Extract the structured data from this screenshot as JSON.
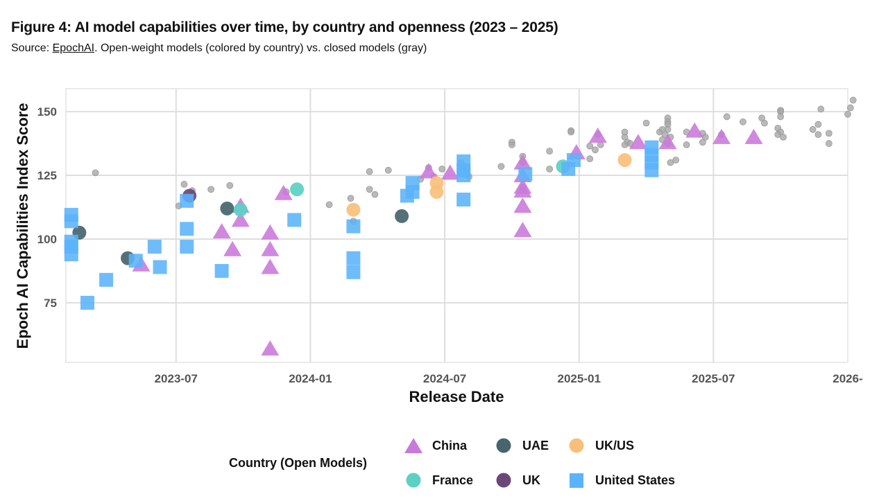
{
  "header": {
    "title": "Figure 4: AI model capabilities over time, by country and openness (2023 – 2025)",
    "subtitle_prefix": "Source: ",
    "subtitle_link": "EpochAI",
    "subtitle_suffix": ". Open-weight models (colored by country) vs. closed models (gray)"
  },
  "legend": {
    "title": "Country (Open Models)",
    "items": [
      {
        "label": "China",
        "shape": "triangle",
        "color": "#C978DB"
      },
      {
        "label": "UAE",
        "shape": "circle",
        "color": "#47656B"
      },
      {
        "label": "UK/US",
        "shape": "circle",
        "color": "#F7C07A"
      },
      {
        "label": "France",
        "shape": "circle",
        "color": "#5BD0C3"
      },
      {
        "label": "UK",
        "shape": "circle",
        "color": "#6B4877"
      },
      {
        "label": "United States",
        "shape": "square",
        "color": "#5BB3FA"
      }
    ]
  },
  "chart_data": {
    "type": "scatter",
    "title": "Figure 4: AI model capabilities over time, by country and openness (2023 – 2025)",
    "xlabel": "Release Date",
    "ylabel": "Epoch AI Capabilities Index Score",
    "x_unit": "fractional year",
    "xlim": [
      2023.09,
      2026.0
    ],
    "ylim": [
      51.6,
      159
    ],
    "x_ticks": [
      {
        "value": 2023.5,
        "label": "2023-07"
      },
      {
        "value": 2024.0,
        "label": "2024-01"
      },
      {
        "value": 2024.5,
        "label": "2024-07"
      },
      {
        "value": 2025.0,
        "label": "2025-01"
      },
      {
        "value": 2025.5,
        "label": "2025-07"
      },
      {
        "value": 2026.0,
        "label": "2026-"
      }
    ],
    "y_ticks": [
      75,
      100,
      125,
      150
    ],
    "grid": true,
    "legend_position": "bottom",
    "closed_color": "#A8A8A8",
    "series": [
      {
        "name": "Closed",
        "shape": "circle-small",
        "color": "#A8A8A8",
        "points": [
          [
            2023.2,
            126
          ],
          [
            2023.53,
            121.5
          ],
          [
            2023.51,
            113
          ],
          [
            2023.56,
            119
          ],
          [
            2023.7,
            121
          ],
          [
            2023.63,
            119.5
          ],
          [
            2023.91,
            118.5
          ],
          [
            2024.07,
            113.5
          ],
          [
            2024.15,
            116
          ],
          [
            2024.22,
            126.5
          ],
          [
            2024.22,
            119.5
          ],
          [
            2024.24,
            117.5
          ],
          [
            2024.16,
            107
          ],
          [
            2024.29,
            127
          ],
          [
            2024.44,
            128
          ],
          [
            2024.46,
            124.5
          ],
          [
            2024.41,
            123.5
          ],
          [
            2024.49,
            127.5
          ],
          [
            2024.56,
            130
          ],
          [
            2024.59,
            124.5
          ],
          [
            2024.57,
            128.5
          ],
          [
            2024.71,
            128.5
          ],
          [
            2024.75,
            138
          ],
          [
            2024.75,
            137
          ],
          [
            2024.79,
            132.5
          ],
          [
            2024.79,
            130
          ],
          [
            2024.79,
            120.5
          ],
          [
            2024.89,
            134.5
          ],
          [
            2024.89,
            127.5
          ],
          [
            2024.97,
            142.5
          ],
          [
            2024.97,
            142
          ],
          [
            2025.04,
            136.5
          ],
          [
            2025.04,
            131.5
          ],
          [
            2025.07,
            141
          ],
          [
            2025.08,
            137
          ],
          [
            2025.06,
            135
          ],
          [
            2025.17,
            142
          ],
          [
            2025.17,
            140
          ],
          [
            2025.18,
            138
          ],
          [
            2025.19,
            137.5
          ],
          [
            2025.17,
            137
          ],
          [
            2025.25,
            145.5
          ],
          [
            2025.3,
            142
          ],
          [
            2025.31,
            139
          ],
          [
            2025.33,
            147.5
          ],
          [
            2025.33,
            146
          ],
          [
            2025.33,
            145
          ],
          [
            2025.33,
            143
          ],
          [
            2025.32,
            141
          ],
          [
            2025.34,
            140
          ],
          [
            2025.31,
            143
          ],
          [
            2025.33,
            137.5
          ],
          [
            2025.36,
            131
          ],
          [
            2025.34,
            130
          ],
          [
            2025.4,
            142
          ],
          [
            2025.4,
            137
          ],
          [
            2025.46,
            141.5
          ],
          [
            2025.47,
            140
          ],
          [
            2025.46,
            138
          ],
          [
            2025.53,
            141
          ],
          [
            2025.55,
            148
          ],
          [
            2025.61,
            146
          ],
          [
            2025.68,
            147.5
          ],
          [
            2025.69,
            145.5
          ],
          [
            2025.75,
            150.5
          ],
          [
            2025.75,
            150
          ],
          [
            2025.75,
            148
          ],
          [
            2025.74,
            143.5
          ],
          [
            2025.75,
            142
          ],
          [
            2025.74,
            141
          ],
          [
            2025.76,
            140
          ],
          [
            2025.9,
            151
          ],
          [
            2025.87,
            143
          ],
          [
            2025.89,
            145
          ],
          [
            2025.89,
            141
          ],
          [
            2025.93,
            141.5
          ],
          [
            2025.93,
            137.5
          ],
          [
            2026.02,
            154.5
          ],
          [
            2026.01,
            151.5
          ],
          [
            2026.0,
            149
          ]
        ]
      },
      {
        "name": "China",
        "shape": "triangle",
        "color": "#C978DB",
        "points": [
          [
            2023.37,
            90
          ],
          [
            2023.67,
            103
          ],
          [
            2023.71,
            96
          ],
          [
            2023.74,
            113
          ],
          [
            2023.74,
            107.5
          ],
          [
            2023.85,
            102.5
          ],
          [
            2023.85,
            96
          ],
          [
            2023.85,
            89
          ],
          [
            2023.9,
            118
          ],
          [
            2023.85,
            57
          ],
          [
            2024.44,
            126.5
          ],
          [
            2024.52,
            126
          ],
          [
            2024.79,
            130
          ],
          [
            2024.79,
            125
          ],
          [
            2024.79,
            120.5
          ],
          [
            2024.79,
            119
          ],
          [
            2024.79,
            113
          ],
          [
            2024.79,
            103.5
          ],
          [
            2024.99,
            134
          ],
          [
            2025.07,
            140.5
          ],
          [
            2025.22,
            138
          ],
          [
            2025.33,
            138
          ],
          [
            2025.43,
            142.5
          ],
          [
            2025.53,
            140
          ],
          [
            2025.65,
            140
          ]
        ]
      },
      {
        "name": "UAE",
        "shape": "circle",
        "color": "#47656B",
        "points": [
          [
            2023.14,
            102.5
          ],
          [
            2023.32,
            92.5
          ],
          [
            2023.69,
            112
          ],
          [
            2024.34,
            109
          ]
        ]
      },
      {
        "name": "UK/US",
        "shape": "circle",
        "color": "#F7C07A",
        "points": [
          [
            2024.16,
            111.5
          ],
          [
            2024.47,
            122
          ],
          [
            2024.47,
            118.5
          ],
          [
            2025.17,
            131
          ]
        ]
      },
      {
        "name": "France",
        "shape": "circle",
        "color": "#5BD0C3",
        "points": [
          [
            2023.74,
            111.5
          ],
          [
            2023.95,
            119.5
          ],
          [
            2024.94,
            128.5
          ]
        ]
      },
      {
        "name": "UK",
        "shape": "circle",
        "color": "#6B4877",
        "points": [
          [
            2023.55,
            117
          ]
        ]
      },
      {
        "name": "United States",
        "shape": "square",
        "color": "#5BB3FA",
        "points": [
          [
            2023.11,
            109.5
          ],
          [
            2023.11,
            107
          ],
          [
            2023.11,
            99
          ],
          [
            2023.11,
            97
          ],
          [
            2023.11,
            94
          ],
          [
            2023.17,
            75
          ],
          [
            2023.24,
            84
          ],
          [
            2023.35,
            91.5
          ],
          [
            2023.42,
            97
          ],
          [
            2023.44,
            89
          ],
          [
            2023.54,
            115
          ],
          [
            2023.54,
            104
          ],
          [
            2023.54,
            97
          ],
          [
            2023.67,
            87.5
          ],
          [
            2023.94,
            107.5
          ],
          [
            2024.16,
            105
          ],
          [
            2024.16,
            92.5
          ],
          [
            2024.16,
            87
          ],
          [
            2024.36,
            117
          ],
          [
            2024.38,
            122
          ],
          [
            2024.38,
            118.5
          ],
          [
            2024.57,
            130.5
          ],
          [
            2024.57,
            127
          ],
          [
            2024.57,
            125
          ],
          [
            2024.57,
            115.5
          ],
          [
            2024.8,
            125.5
          ],
          [
            2024.96,
            127.5
          ],
          [
            2024.98,
            131
          ],
          [
            2025.27,
            136
          ],
          [
            2025.27,
            133
          ],
          [
            2025.27,
            130
          ],
          [
            2025.27,
            127
          ]
        ]
      }
    ]
  }
}
